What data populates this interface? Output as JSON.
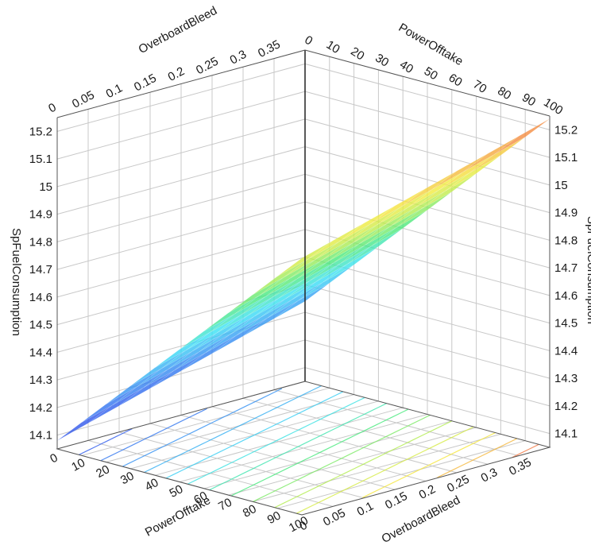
{
  "chart_data": {
    "type": "surface",
    "title": "",
    "xlabel": "PowerOfftake",
    "ylabel": "OverboardBleed",
    "zlabel": "SpFuelConsumption",
    "xlim": [
      0,
      100
    ],
    "ylim": [
      0,
      0.4
    ],
    "zlim": [
      14.05,
      15.25
    ],
    "x_ticks": [
      "0",
      "10",
      "20",
      "30",
      "40",
      "50",
      "60",
      "70",
      "80",
      "90",
      "100"
    ],
    "y_ticks": [
      "0",
      "0.05",
      "0.1",
      "0.15",
      "0.2",
      "0.25",
      "0.3",
      "0.35"
    ],
    "z_ticks": [
      "14.1",
      "14.2",
      "14.3",
      "14.4",
      "14.5",
      "14.6",
      "14.7",
      "14.8",
      "14.9",
      "15",
      "15.1",
      "15.2"
    ],
    "grid": true,
    "colormap": "jet",
    "surface": {
      "x": [
        0,
        100
      ],
      "y": [
        0,
        0.4
      ],
      "z": [
        [
          14.08,
          14.34
        ],
        [
          14.98,
          15.24
        ]
      ]
    }
  }
}
